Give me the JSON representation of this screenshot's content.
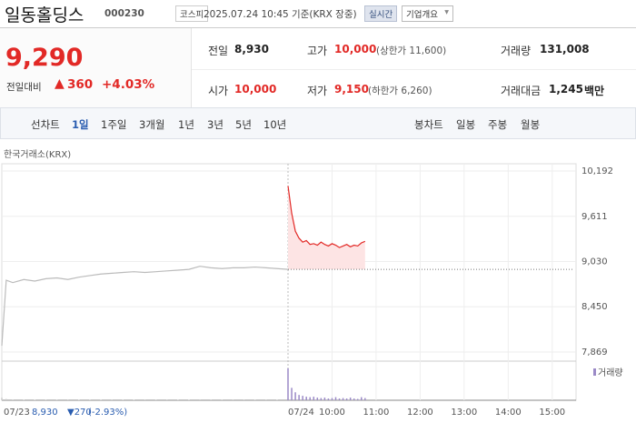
{
  "header": {
    "name": "일동홀딩스",
    "code": "000230",
    "market": "코스피",
    "timestamp": "2025.07.24 10:45 기준(KRX 장중)",
    "buttons": [
      "실시간",
      "기업개요"
    ]
  },
  "quote": {
    "price": "9,290",
    "change_label": "전일대비",
    "change": "360",
    "change_pct": "+4.03%"
  },
  "stats": [
    {
      "label": "전일",
      "value": "8,930"
    },
    {
      "label": "고가",
      "value": "10,000",
      "note": "(상한가 11,600)"
    },
    {
      "label": "거래량",
      "value": "131,008"
    },
    {
      "label": "시가",
      "value": "10,000"
    },
    {
      "label": "저가",
      "value": "9,150",
      "note": "(하한가 6,260)"
    },
    {
      "label": "거래대금",
      "value": "1,245",
      "unit": "백만"
    }
  ],
  "tabs": {
    "line_label": "선차트",
    "line": [
      "1일",
      "1주일",
      "3개월",
      "1년",
      "3년",
      "5년",
      "10년"
    ],
    "candle_label": "봉차트",
    "candle": [
      "일봉",
      "주봉",
      "월봉"
    ]
  },
  "chart_data": {
    "type": "line",
    "source": "한국거래소(KRX)",
    "xlim": [
      0,
      780
    ],
    "xticks": [
      {
        "value": 390,
        "label": "07/24"
      },
      {
        "value": 450,
        "label": "10:00"
      },
      {
        "value": 510,
        "label": "11:00"
      },
      {
        "value": 570,
        "label": "12:00"
      },
      {
        "value": 630,
        "label": "13:00"
      },
      {
        "value": 690,
        "label": "14:00"
      },
      {
        "value": 750,
        "label": "15:00"
      }
    ],
    "ylim": [
      7869,
      10192
    ],
    "yticks": [
      {
        "value": 10192,
        "label": "10,192"
      },
      {
        "value": 9611,
        "label": "9,611"
      },
      {
        "value": 9030,
        "label": "9,030"
      },
      {
        "value": 8450,
        "label": "8,450"
      },
      {
        "value": 7869,
        "label": "7,869"
      }
    ],
    "grid": true,
    "baseline": 8930,
    "series": [
      {
        "color": "#bbbbbb",
        "x": [
          0,
          6,
          15,
          30,
          45,
          60,
          75,
          90,
          105,
          120,
          135,
          150,
          165,
          180,
          195,
          210,
          225,
          240,
          255,
          270,
          285,
          300,
          315,
          330,
          345,
          360,
          375,
          390
        ],
        "values": [
          7950,
          8790,
          8760,
          8800,
          8780,
          8810,
          8820,
          8800,
          8830,
          8850,
          8870,
          8880,
          8890,
          8900,
          8890,
          8900,
          8910,
          8920,
          8930,
          8970,
          8950,
          8940,
          8950,
          8950,
          8960,
          8950,
          8940,
          8930
        ]
      },
      {
        "color": "#e22926",
        "fill": "#fde4e4",
        "x": [
          390,
          395,
          400,
          405,
          410,
          415,
          420,
          425,
          430,
          435,
          440,
          445,
          450,
          455,
          460,
          465,
          470,
          475,
          480,
          485,
          490,
          495
        ],
        "values": [
          10000,
          9650,
          9420,
          9330,
          9280,
          9300,
          9250,
          9260,
          9240,
          9280,
          9250,
          9230,
          9260,
          9240,
          9210,
          9230,
          9250,
          9220,
          9240,
          9230,
          9270,
          9290
        ]
      }
    ],
    "volume": {
      "name": "거래량",
      "ylim": [
        0,
        40000
      ],
      "series": [
        {
          "color": "#cccccc",
          "values": [
            3000,
            1500,
            800,
            600,
            500,
            400,
            700,
            300,
            500,
            400,
            600,
            300,
            400,
            500,
            300,
            400,
            300,
            600,
            500,
            900,
            300,
            400,
            300,
            300,
            400,
            300,
            600,
            1500
          ]
        },
        {
          "color": "#9b8ac7",
          "values": [
            36000,
            14000,
            9000,
            6000,
            5000,
            4000,
            3500,
            4000,
            3000,
            2500,
            3000,
            2000,
            2500,
            3500,
            2000,
            2500,
            2000,
            3000,
            2000,
            1500,
            3500,
            2500
          ]
        }
      ]
    },
    "info": {
      "date": "07/23",
      "close": "8,930",
      "change": "▼270",
      "change_pct": "(-2.93%)"
    }
  }
}
